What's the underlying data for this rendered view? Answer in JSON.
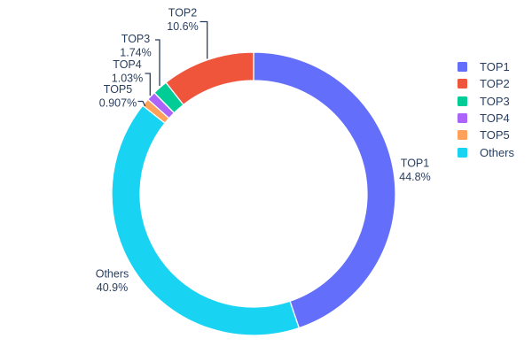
{
  "figure": {
    "background_color": "#ffffff",
    "text_color": "#2a3f5f"
  },
  "chart_data": {
    "type": "pie",
    "subtype": "donut",
    "hole_ratio": 0.8,
    "title": "",
    "rotation_start": "12-oclock",
    "slices": [
      {
        "label": "TOP1",
        "value": 44.8,
        "percent_text": "44.8%",
        "color": "#636EFA"
      },
      {
        "label": "TOP2",
        "value": 10.6,
        "percent_text": "10.6%",
        "color": "#EF553B"
      },
      {
        "label": "TOP3",
        "value": 1.74,
        "percent_text": "1.74%",
        "color": "#00CC96"
      },
      {
        "label": "TOP4",
        "value": 1.03,
        "percent_text": "1.03%",
        "color": "#AB63FA"
      },
      {
        "label": "TOP5",
        "value": 0.907,
        "percent_text": "0.907%",
        "color": "#FFA15A"
      },
      {
        "label": "Others",
        "value": 40.9,
        "percent_text": "40.9%",
        "color": "#19D3F3"
      }
    ],
    "clockwise_order": [
      "TOP1",
      "Others",
      "TOP5",
      "TOP4",
      "TOP3",
      "TOP2"
    ],
    "slice_separator_color": "#ffffff",
    "legend": {
      "position": "right",
      "entries": [
        "TOP1",
        "TOP2",
        "TOP3",
        "TOP4",
        "TOP5",
        "Others"
      ]
    }
  }
}
